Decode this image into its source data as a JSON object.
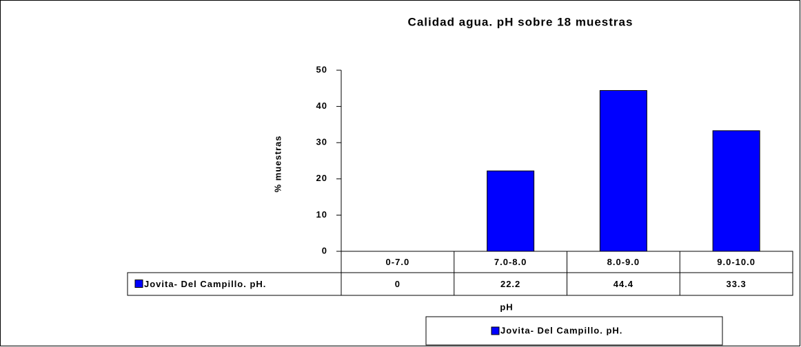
{
  "chart_data": {
    "type": "bar",
    "title": "Calidad agua. pH sobre 18 muestras",
    "y_label": "% muestras",
    "x_label": "pH",
    "categories": [
      "0-7.0",
      "7.0-8.0",
      "8.0-9.0",
      "9.0-10.0"
    ],
    "series": [
      {
        "name": "Jovita- Del Campillo. pH.",
        "color": "#0000ff",
        "values": [
          0,
          22.2,
          44.4,
          33.3
        ]
      }
    ],
    "ylim": [
      0,
      50
    ],
    "yticks": [
      0,
      10,
      20,
      30,
      40,
      50
    ],
    "grid": false,
    "legend": "bottom"
  }
}
